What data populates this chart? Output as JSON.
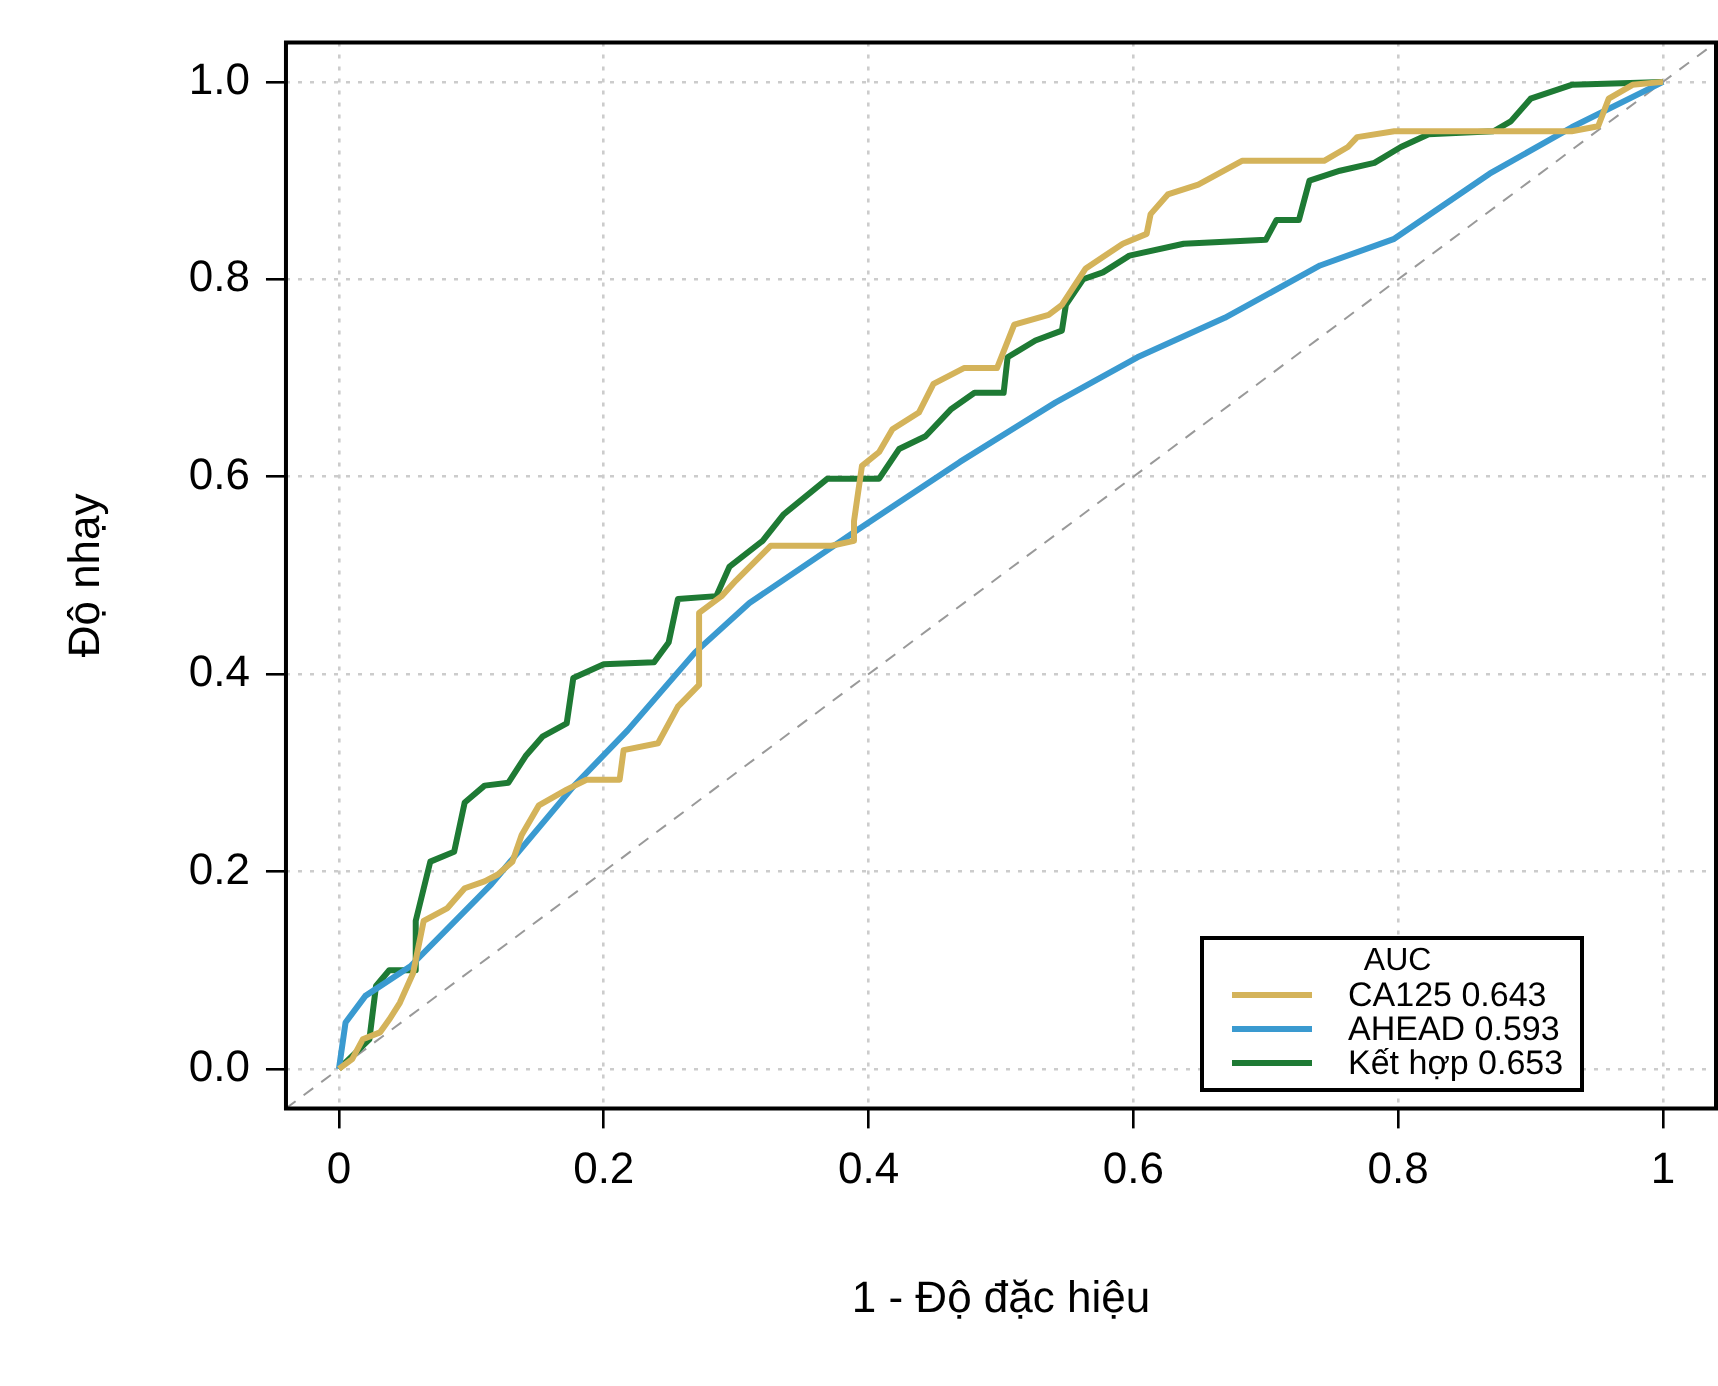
{
  "chart_data": {
    "type": "line",
    "xlabel": "1 - Độ đặc hiệu",
    "ylabel": "Độ nhạy",
    "legend_title": "AUC",
    "legend": "bottom right",
    "grid": true,
    "marker": "none",
    "xlim": [
      -0.04,
      1.04
    ],
    "ylim": [
      -0.04,
      1.04
    ],
    "xticks": [
      0,
      0.2,
      0.4,
      0.6,
      0.8,
      1
    ],
    "yticks": [
      {
        "value": 0,
        "label": "0.0"
      },
      0.2,
      0.4,
      0.6,
      0.8,
      {
        "value": 1,
        "label": "1.0"
      }
    ],
    "series": [
      {
        "name": "CA125 0.643",
        "color": "#d4b35a",
        "line_style": "solid",
        "x": [
          0,
          0.01,
          0.018,
          0.031,
          0.038,
          0.046,
          0.056,
          0.064,
          0.082,
          0.095,
          0.11,
          0.12,
          0.131,
          0.138,
          0.151,
          0.172,
          0.187,
          0.212,
          0.215,
          0.241,
          0.256,
          0.272,
          0.272,
          0.289,
          0.3,
          0.326,
          0.372,
          0.389,
          0.389,
          0.395,
          0.408,
          0.418,
          0.438,
          0.449,
          0.472,
          0.497,
          0.51,
          0.536,
          0.546,
          0.564,
          0.592,
          0.61,
          0.613,
          0.626,
          0.649,
          0.682,
          0.744,
          0.762,
          0.769,
          0.797,
          0.825,
          0.931,
          0.951,
          0.959,
          0.977,
          1
        ],
        "values": [
          0,
          0.01,
          0.03,
          0.037,
          0.05,
          0.067,
          0.097,
          0.15,
          0.163,
          0.183,
          0.19,
          0.197,
          0.21,
          0.237,
          0.267,
          0.283,
          0.293,
          0.293,
          0.323,
          0.33,
          0.367,
          0.389,
          0.462,
          0.479,
          0.495,
          0.53,
          0.53,
          0.535,
          0.555,
          0.611,
          0.625,
          0.648,
          0.665,
          0.694,
          0.71,
          0.71,
          0.754,
          0.764,
          0.774,
          0.811,
          0.836,
          0.846,
          0.866,
          0.886,
          0.896,
          0.92,
          0.92,
          0.934,
          0.944,
          0.95,
          0.95,
          0.95,
          0.955,
          0.983,
          0.997,
          1
        ]
      },
      {
        "name": "AHEAD 0.593",
        "color": "#3a9ad0",
        "line_style": "solid",
        "x": [
          0,
          0.005,
          0.02,
          0.054,
          0.115,
          0.177,
          0.218,
          0.269,
          0.31,
          0.387,
          0.469,
          0.541,
          0.603,
          0.669,
          0.741,
          0.797,
          0.869,
          0.931,
          1
        ],
        "values": [
          0,
          0.047,
          0.074,
          0.104,
          0.187,
          0.286,
          0.343,
          0.422,
          0.472,
          0.542,
          0.615,
          0.675,
          0.721,
          0.761,
          0.814,
          0.841,
          0.907,
          0.954,
          1
        ]
      },
      {
        "name": "Kết hợp 0.653",
        "color": "#1e7a34",
        "line_style": "solid",
        "x": [
          0,
          0.023,
          0.028,
          0.038,
          0.058,
          0.058,
          0.069,
          0.087,
          0.095,
          0.11,
          0.128,
          0.141,
          0.154,
          0.172,
          0.177,
          0.2,
          0.238,
          0.249,
          0.256,
          0.285,
          0.295,
          0.32,
          0.336,
          0.369,
          0.408,
          0.423,
          0.443,
          0.462,
          0.48,
          0.502,
          0.505,
          0.526,
          0.546,
          0.549,
          0.562,
          0.577,
          0.597,
          0.638,
          0.7,
          0.708,
          0.725,
          0.733,
          0.756,
          0.782,
          0.802,
          0.823,
          0.872,
          0.885,
          0.9,
          0.931,
          1
        ],
        "values": [
          0,
          0.03,
          0.084,
          0.1,
          0.1,
          0.15,
          0.21,
          0.22,
          0.27,
          0.287,
          0.29,
          0.317,
          0.337,
          0.35,
          0.396,
          0.41,
          0.412,
          0.432,
          0.476,
          0.479,
          0.509,
          0.535,
          0.562,
          0.598,
          0.598,
          0.628,
          0.641,
          0.668,
          0.685,
          0.685,
          0.721,
          0.738,
          0.748,
          0.774,
          0.8,
          0.807,
          0.824,
          0.836,
          0.84,
          0.86,
          0.86,
          0.9,
          0.91,
          0.918,
          0.934,
          0.947,
          0.95,
          0.96,
          0.983,
          0.997,
          1
        ]
      },
      {
        "color": "#999999",
        "line_style": "dashed",
        "x": [
          -0.04,
          1.04
        ],
        "values": [
          -0.04,
          1.04
        ]
      }
    ]
  }
}
